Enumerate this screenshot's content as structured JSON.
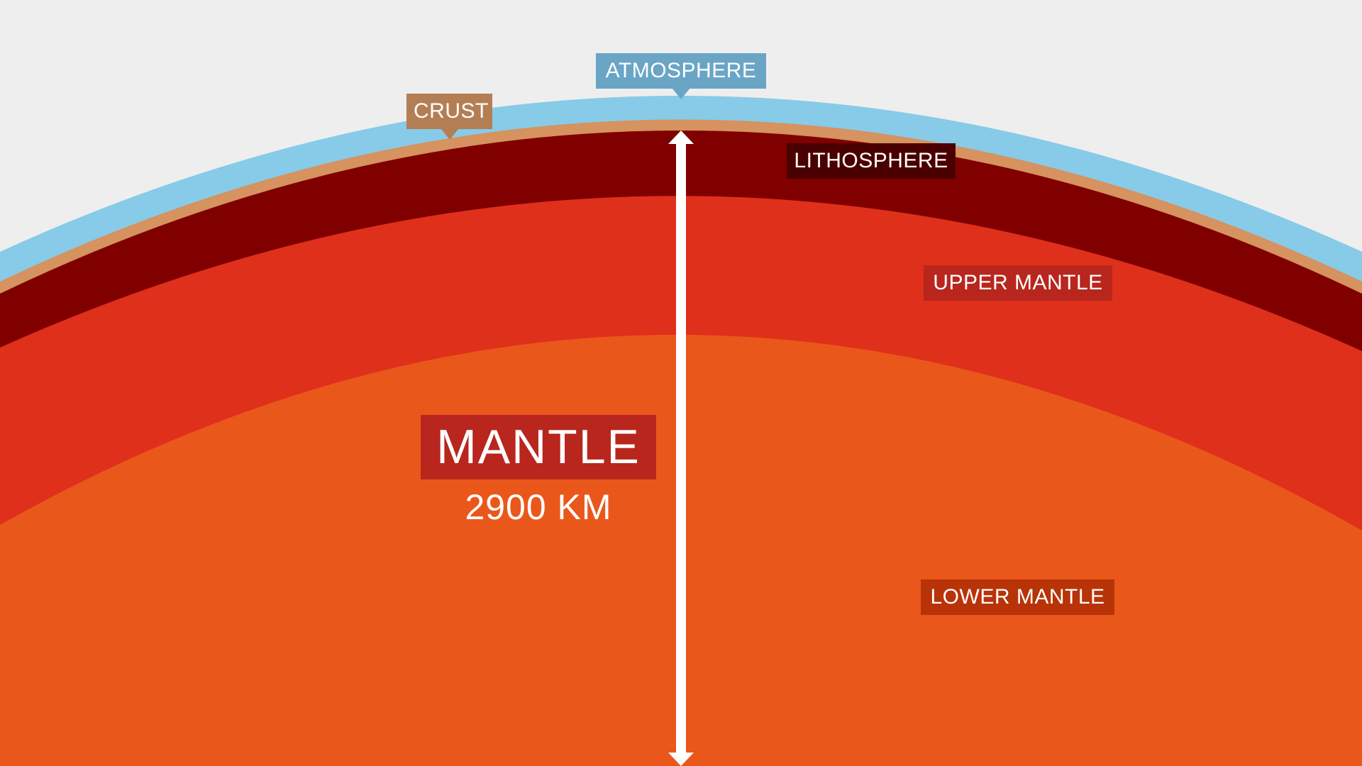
{
  "diagram": {
    "layers": [
      {
        "name": "atmosphere",
        "color": "#87cbe8"
      },
      {
        "name": "crust",
        "color": "#d6925f"
      },
      {
        "name": "lithosphere",
        "color": "#800000"
      },
      {
        "name": "upper-mantle",
        "color": "#df301c"
      },
      {
        "name": "lower-mantle",
        "color": "#ea571b"
      }
    ],
    "background_color": "#eeeeee",
    "arrow_color": "#ffffff"
  },
  "labels": {
    "atmosphere": "ATMOSPHERE",
    "crust": "CRUST",
    "lithosphere": "LITHOSPHERE",
    "upper_mantle": "UPPER MANTLE",
    "lower_mantle": "LOWER MANTLE",
    "mantle_title": "MANTLE",
    "mantle_depth": "2900 KM"
  }
}
